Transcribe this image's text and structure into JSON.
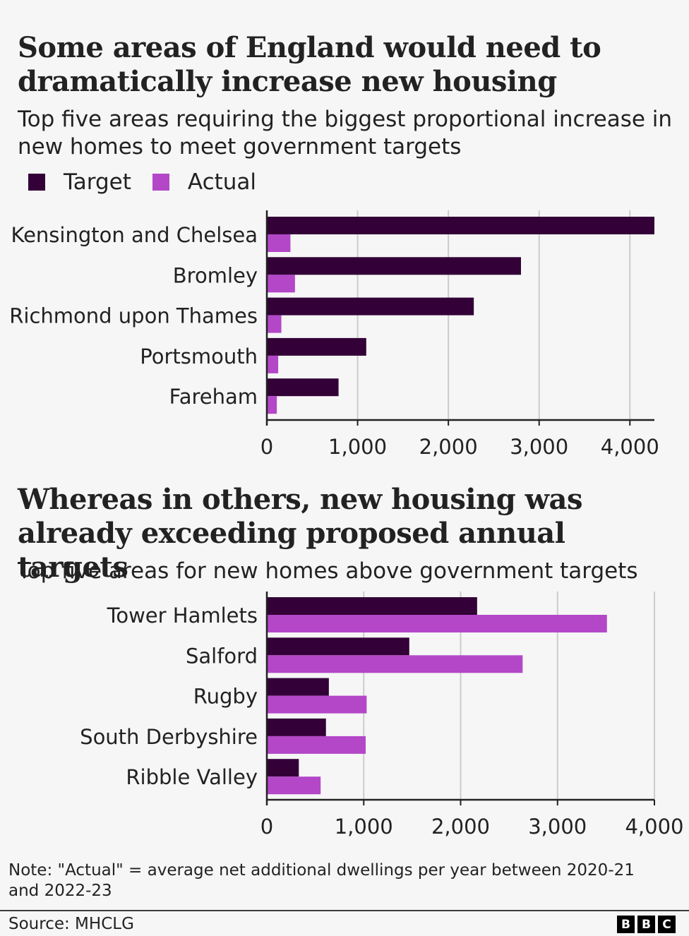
{
  "colors": {
    "target": "#330038",
    "actual": "#b347c8",
    "grid": "#cccccc",
    "axis": "#222222"
  },
  "legend": {
    "target": "Target",
    "actual": "Actual"
  },
  "chart1": {
    "title": "Some areas of England would need to dramatically increase new housing",
    "subtitle": "Top five areas requiring the biggest proportional increase in new homes to meet government targets"
  },
  "chart2": {
    "title": "Whereas in others, new housing was already exceeding proposed annual targets",
    "subtitle": "Top five areas for new homes above government targets"
  },
  "chart_data": [
    {
      "type": "bar",
      "orientation": "horizontal",
      "categories": [
        "Kensington and Chelsea",
        "Bromley",
        "Richmond upon Thames",
        "Portsmouth",
        "Fareham"
      ],
      "series": [
        {
          "name": "Target",
          "values": [
            4270,
            2800,
            2280,
            1095,
            790
          ]
        },
        {
          "name": "Actual",
          "values": [
            260,
            310,
            160,
            125,
            110
          ]
        }
      ],
      "xlim": [
        0,
        4270
      ],
      "xticks": [
        0,
        1000,
        2000,
        3000,
        4000
      ],
      "xtick_labels": [
        "0",
        "1,000",
        "2,000",
        "3,000",
        "4,000"
      ],
      "grid": true
    },
    {
      "type": "bar",
      "orientation": "horizontal",
      "categories": [
        "Tower Hamlets",
        "Salford",
        "Rugby",
        "South Derbyshire",
        "Ribble Valley"
      ],
      "series": [
        {
          "name": "Target",
          "values": [
            2170,
            1470,
            640,
            610,
            330
          ]
        },
        {
          "name": "Actual",
          "values": [
            3510,
            2640,
            1030,
            1020,
            555
          ]
        }
      ],
      "xlim": [
        0,
        4000
      ],
      "xticks": [
        0,
        1000,
        2000,
        3000,
        4000
      ],
      "xtick_labels": [
        "0",
        "1,000",
        "2,000",
        "3,000",
        "4,000"
      ],
      "grid": true
    }
  ],
  "footer": {
    "note": "Note: \"Actual\" = average net additional dwellings per year between 2020-21 and 2022-23",
    "source": "Source: MHCLG",
    "logo_letters": [
      "B",
      "B",
      "C"
    ]
  }
}
